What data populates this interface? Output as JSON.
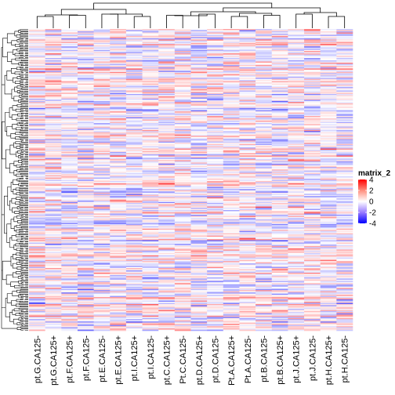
{
  "chart_data": {
    "type": "heatmap",
    "columns": [
      "pt.G.CA125-",
      "pt.G.CA125+",
      "pt.F.CA125+",
      "pt.F.CA125-",
      "pt.E.CA125-",
      "pt.E.CA125+",
      "pt.I.CA125+",
      "pt.I.CA125-",
      "pt.C.CA125+",
      "Pt.C.CA125-",
      "pt.D.CA125+",
      "pt.D.CA125-",
      "Pt.A.CA125+",
      "Pt.A.CA125-",
      "pt.B.CA125-",
      "pt.B.CA125+",
      "pt.J.CA125+",
      "pt.J.CA125-",
      "pt.H.CA125+",
      "pt.H.CA125-"
    ],
    "row_count": 260,
    "value_range": [
      -4,
      4
    ],
    "colors": {
      "low": "#0000ff",
      "mid": "#ffffff",
      "high": "#ff0000"
    },
    "legend": {
      "title": "matrix_2",
      "ticks": [
        "4",
        "2",
        "0",
        "-2",
        "-4"
      ],
      "placement": "right"
    },
    "column_dendrogram": true,
    "row_dendrogram": true
  }
}
